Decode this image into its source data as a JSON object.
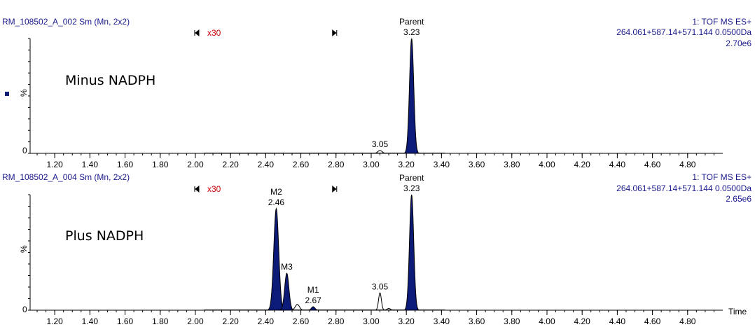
{
  "chart_data": [
    {
      "type": "area",
      "chromatogram_id": "RM_108502_A_002 Sm (Mn, 2x2)",
      "detector": "1: TOF MS ES+",
      "channel": "264.061+587.14+571.144 0.0500Da",
      "max_intensity": "2.70e6",
      "condition_label": "Minus NADPH",
      "zoom_marker": "x30",
      "ylabel": "%",
      "y_zero_label": "0",
      "xlim": [
        1.06,
        5.0
      ],
      "ylim": [
        0,
        100
      ],
      "xticks": [
        "1.20",
        "1.40",
        "1.60",
        "1.80",
        "2.00",
        "2.20",
        "2.40",
        "2.60",
        "2.80",
        "3.00",
        "3.20",
        "3.40",
        "3.60",
        "3.80",
        "4.00",
        "4.20",
        "4.40",
        "4.60",
        "4.80"
      ],
      "peaks": [
        {
          "rt": 3.05,
          "height": 2.5,
          "width": 0.012,
          "filled": false,
          "labels": [
            "3.05"
          ]
        },
        {
          "rt": 3.23,
          "height": 100,
          "width": 0.012,
          "filled": true,
          "labels": [
            "Parent",
            "3.23"
          ]
        }
      ]
    },
    {
      "type": "area",
      "chromatogram_id": "RM_108502_A_004 Sm (Mn, 2x2)",
      "detector": "1: TOF MS ES+",
      "channel": "264.061+587.14+571.144 0.0500Da",
      "max_intensity": "2.65e6",
      "condition_label": "Plus NADPH",
      "zoom_marker": "x30",
      "ylabel": "%",
      "y_zero_label": "0",
      "x_axis_title": "Time",
      "xlim": [
        1.06,
        5.0
      ],
      "ylim": [
        0,
        100
      ],
      "xticks": [
        "1.20",
        "1.40",
        "1.60",
        "1.80",
        "2.00",
        "2.20",
        "2.40",
        "2.60",
        "2.80",
        "3.00",
        "3.20",
        "3.40",
        "3.60",
        "3.80",
        "4.00",
        "4.20",
        "4.40",
        "4.60",
        "4.80"
      ],
      "peaks": [
        {
          "rt": 2.46,
          "height": 88,
          "width": 0.014,
          "filled": true,
          "labels": [
            "M2",
            "2.46"
          ]
        },
        {
          "rt": 2.52,
          "height": 32,
          "width": 0.012,
          "filled": true,
          "labels": [
            "M3"
          ]
        },
        {
          "rt": 2.58,
          "height": 5,
          "width": 0.012,
          "filled": false,
          "labels": []
        },
        {
          "rt": 2.67,
          "height": 3,
          "width": 0.01,
          "filled": true,
          "labels": [
            "M1",
            "2.67"
          ]
        },
        {
          "rt": 3.05,
          "height": 15,
          "width": 0.008,
          "filled": false,
          "labels": [
            "3.05"
          ]
        },
        {
          "rt": 3.1,
          "height": 1.5,
          "width": 0.01,
          "filled": false,
          "labels": []
        },
        {
          "rt": 3.23,
          "height": 100,
          "width": 0.012,
          "filled": true,
          "labels": [
            "Parent",
            "3.23"
          ]
        }
      ]
    }
  ],
  "colors": {
    "trace": "#000000",
    "fill": "#0c1a78",
    "header_text": "#1a1a8c",
    "marker_text": "#cc0000"
  }
}
